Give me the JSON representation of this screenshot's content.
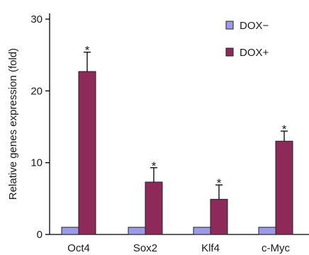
{
  "chart_data": {
    "type": "bar",
    "categories": [
      "Oct4",
      "Sox2",
      "Klf4",
      "c-Myc"
    ],
    "series": [
      {
        "name": "DOX−",
        "values": [
          1,
          1,
          1,
          1
        ],
        "errors": [
          0,
          0,
          0,
          0
        ],
        "color": "#9b9be8"
      },
      {
        "name": "DOX+",
        "values": [
          22.7,
          7.3,
          4.9,
          13.0
        ],
        "errors": [
          2.7,
          2.0,
          2.0,
          1.4
        ],
        "color": "#8e2a5a"
      }
    ],
    "significance_marker": "*",
    "significant": [
      false,
      true
    ],
    "xlabel": "",
    "ylabel": "Relative genes expression (fold)",
    "ylim": [
      0,
      30
    ],
    "yticks": [
      0,
      10,
      20,
      30
    ],
    "grid": false,
    "legend_position": "top-right"
  }
}
